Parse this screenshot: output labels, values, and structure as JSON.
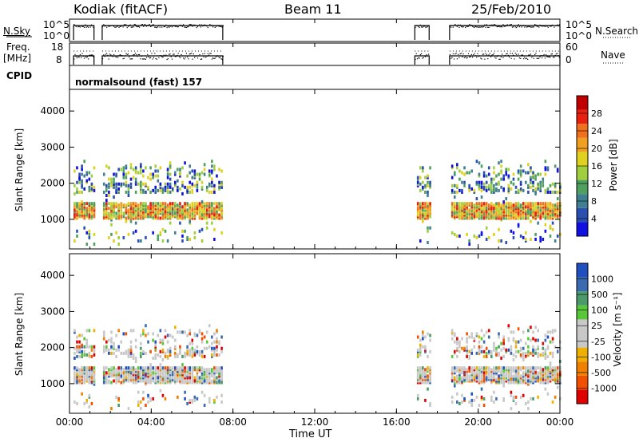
{
  "header": {
    "station": "Kodiak (fitACF)",
    "beam": "Beam 11",
    "date": "25/Feb/2010"
  },
  "panels": {
    "nsky_label": "N.Sky",
    "nsky_ticks": [
      "10^5",
      "10^0"
    ],
    "nsearch_label": "N.Search",
    "nsearch_ticks": [
      "10^5",
      "10^0"
    ],
    "freq_label_1": "Freq.",
    "freq_label_2": "[MHz]",
    "freq_ticks": [
      "18",
      "8"
    ],
    "nave_label": "Nave",
    "nave_ticks": [
      "60",
      "0"
    ],
    "cpid_label": "CPID",
    "cpid_text": "normalsound (fast) 157"
  },
  "colors": {
    "power": [
      "#1010e0",
      "#2a4fb0",
      "#3f7f8f",
      "#4f9f5f",
      "#9fcf3f",
      "#e0d020",
      "#f0a020",
      "#f07020",
      "#e82010",
      "#c00000"
    ],
    "velocity": [
      "#e00000",
      "#f05000",
      "#f08000",
      "#f0b000",
      "#c8c8c8",
      "#c8c8c8",
      "#58c838",
      "#4a9a6a",
      "#3a6ab0",
      "#2050c0"
    ]
  },
  "chart_data": [
    {
      "type": "heatmap",
      "name": "power",
      "ylabel": "Slant Range [km]",
      "xlabel": "Time UT",
      "x_ticks": [
        "00:00",
        "04:00",
        "08:00",
        "12:00",
        "16:00",
        "20:00",
        "00:00"
      ],
      "y_ticks": [
        "1000",
        "2000",
        "3000",
        "4000"
      ],
      "xlim_hours": [
        0,
        24
      ],
      "ylim_km": [
        180,
        4600
      ],
      "colorbar_label": "Power [dB]",
      "colorbar_ticks": [
        "28",
        "24",
        "20",
        "16",
        "12",
        "8",
        "4"
      ],
      "crange": [
        0,
        30
      ],
      "data_intervals_hours": [
        [
          0.2,
          1.2
        ],
        [
          1.6,
          7.5
        ],
        [
          16.9,
          17.6
        ],
        [
          18.6,
          24.0
        ]
      ],
      "range_bands_km": [
        [
          1000,
          1450
        ],
        [
          1700,
          2050
        ],
        [
          2100,
          2500
        ],
        [
          350,
          700
        ]
      ]
    },
    {
      "type": "heatmap",
      "name": "velocity",
      "ylabel": "Slant Range [km]",
      "xlabel": "Time UT",
      "x_ticks": [
        "00:00",
        "04:00",
        "08:00",
        "12:00",
        "16:00",
        "20:00",
        "00:00"
      ],
      "y_ticks": [
        "1000",
        "2000",
        "3000",
        "4000"
      ],
      "xlim_hours": [
        0,
        24
      ],
      "ylim_km": [
        180,
        4600
      ],
      "colorbar_label": "Velocity [m s⁻¹]",
      "colorbar_ticks": [
        "1000",
        "500",
        "100",
        "25",
        "-25",
        "-100",
        "-500",
        "-1000"
      ],
      "crange": [
        -1000,
        1000
      ],
      "data_intervals_hours": [
        [
          0.2,
          1.2
        ],
        [
          1.6,
          7.5
        ],
        [
          16.9,
          17.6
        ],
        [
          18.6,
          24.0
        ]
      ],
      "range_bands_km": [
        [
          1000,
          1450
        ],
        [
          1700,
          2050
        ],
        [
          2100,
          2500
        ],
        [
          350,
          700
        ]
      ]
    }
  ],
  "x_axis": {
    "label": "Time UT",
    "ticks": [
      "00:00",
      "04:00",
      "08:00",
      "12:00",
      "16:00",
      "20:00",
      "00:00"
    ]
  }
}
